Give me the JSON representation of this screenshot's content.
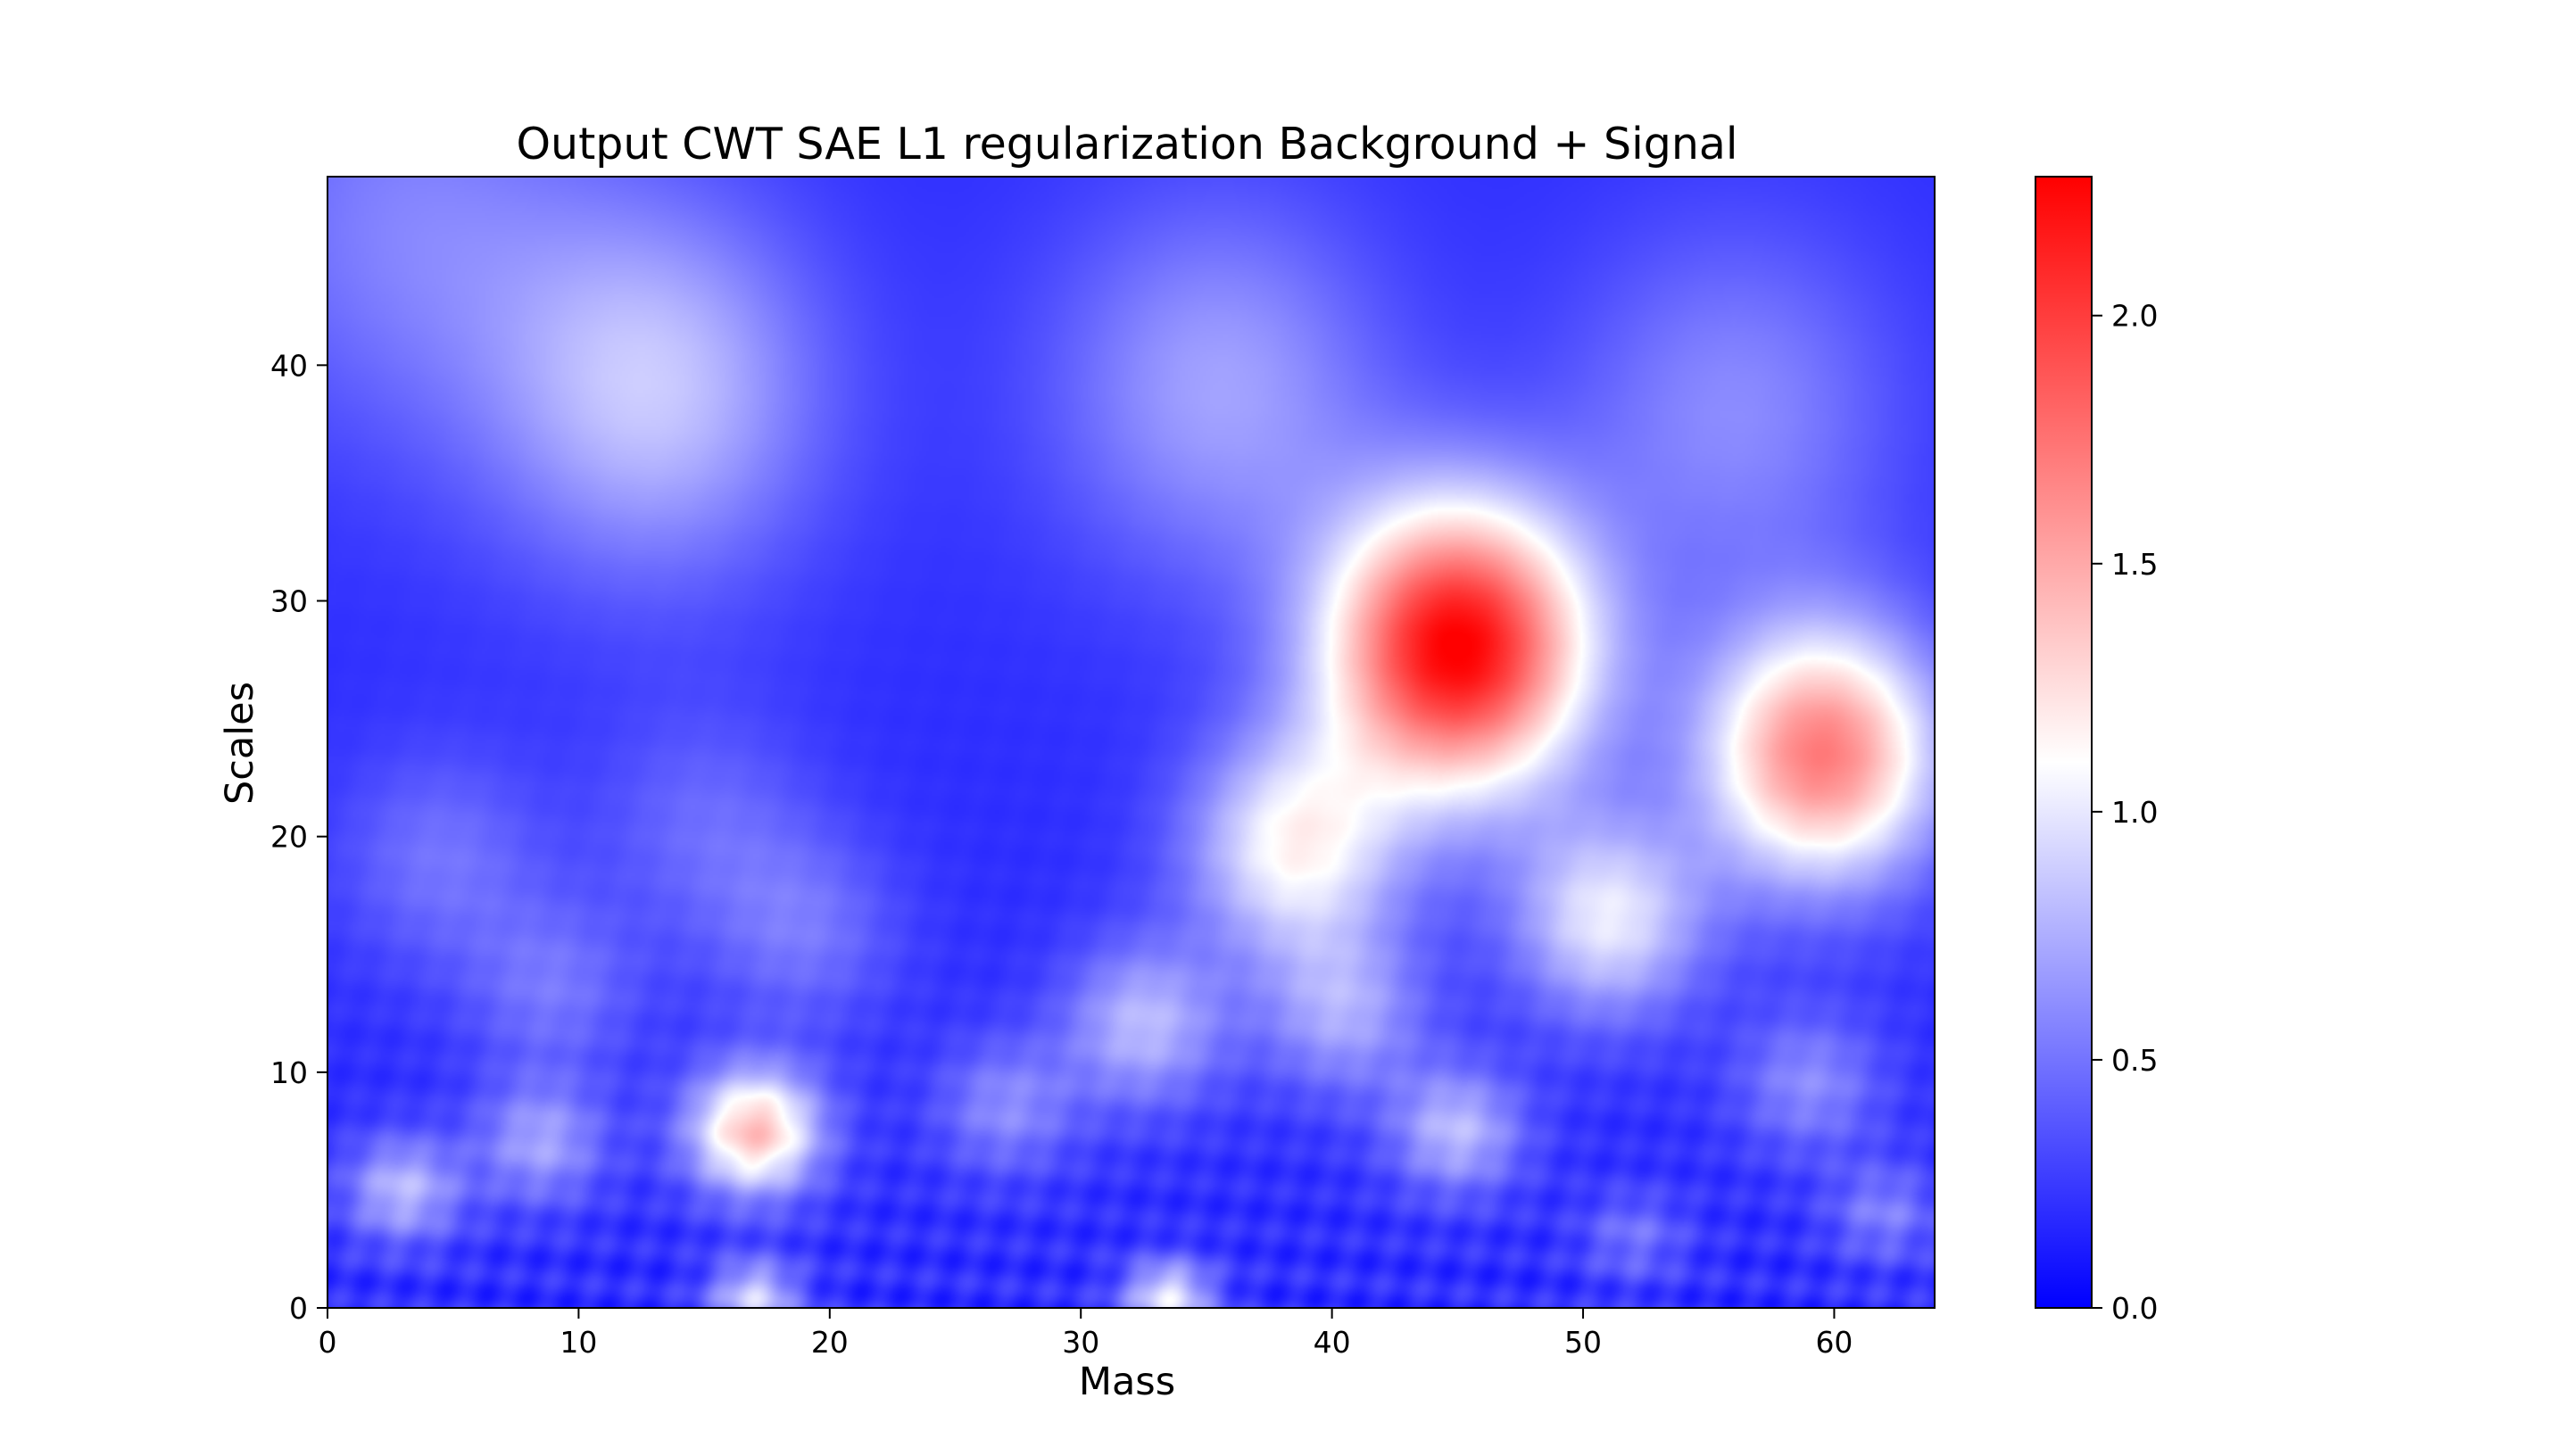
{
  "chart_data": {
    "type": "heatmap",
    "title": "Output CWT SAE L1 regularization Background + Signal",
    "xlabel": "Mass",
    "ylabel": "Scales",
    "xlim": [
      0,
      64
    ],
    "ylim": [
      0,
      48
    ],
    "x_ticks": [
      "0",
      "10",
      "20",
      "30",
      "40",
      "50",
      "60"
    ],
    "y_ticks": [
      "0",
      "10",
      "20",
      "30",
      "40"
    ],
    "colorbar": {
      "range": [
        0,
        2.28
      ],
      "ticks": [
        "0.0",
        "0.5",
        "1.0",
        "1.5",
        "2.0"
      ],
      "colormap": "bwr",
      "colors": [
        "#0000ff",
        "#ffffff",
        "#ff0000"
      ]
    },
    "grid": false,
    "background_level": 0.2,
    "features": [
      {
        "x": 45,
        "y": 28,
        "value": 2.28
      },
      {
        "x": 59.5,
        "y": 23.5,
        "value": 1.7
      },
      {
        "x": 17,
        "y": 7.5,
        "value": 1.4
      },
      {
        "x": 38.5,
        "y": 19.5,
        "value": 1.1
      },
      {
        "x": 51,
        "y": 16.5,
        "value": 1.0
      },
      {
        "x": 13,
        "y": 39,
        "value": 0.85
      },
      {
        "x": 35.5,
        "y": 39,
        "value": 0.7
      },
      {
        "x": 56,
        "y": 38,
        "value": 0.6
      },
      {
        "x": 32.5,
        "y": 12,
        "value": 0.8
      },
      {
        "x": 3,
        "y": 5,
        "value": 0.8
      },
      {
        "x": 8.5,
        "y": 7,
        "value": 0.7
      },
      {
        "x": 40.5,
        "y": 12.5,
        "value": 0.7
      },
      {
        "x": 45,
        "y": 7.5,
        "value": 0.8
      },
      {
        "x": 33.5,
        "y": 0.5,
        "value": 1.0
      },
      {
        "x": 17,
        "y": 0.5,
        "value": 0.9
      },
      {
        "x": 27,
        "y": 8.5,
        "value": 0.6
      },
      {
        "x": 59,
        "y": 9.5,
        "value": 0.6
      },
      {
        "x": 9,
        "y": 13.5,
        "value": 0.5
      },
      {
        "x": 19,
        "y": 16,
        "value": 0.5
      },
      {
        "x": 4.5,
        "y": 19,
        "value": 0.5
      },
      {
        "x": 15,
        "y": 20.5,
        "value": 0.45
      },
      {
        "x": 3,
        "y": 46,
        "value": 0.55
      },
      {
        "x": 62,
        "y": 4,
        "value": 0.55
      },
      {
        "x": 52,
        "y": 3,
        "value": 0.5
      }
    ]
  }
}
